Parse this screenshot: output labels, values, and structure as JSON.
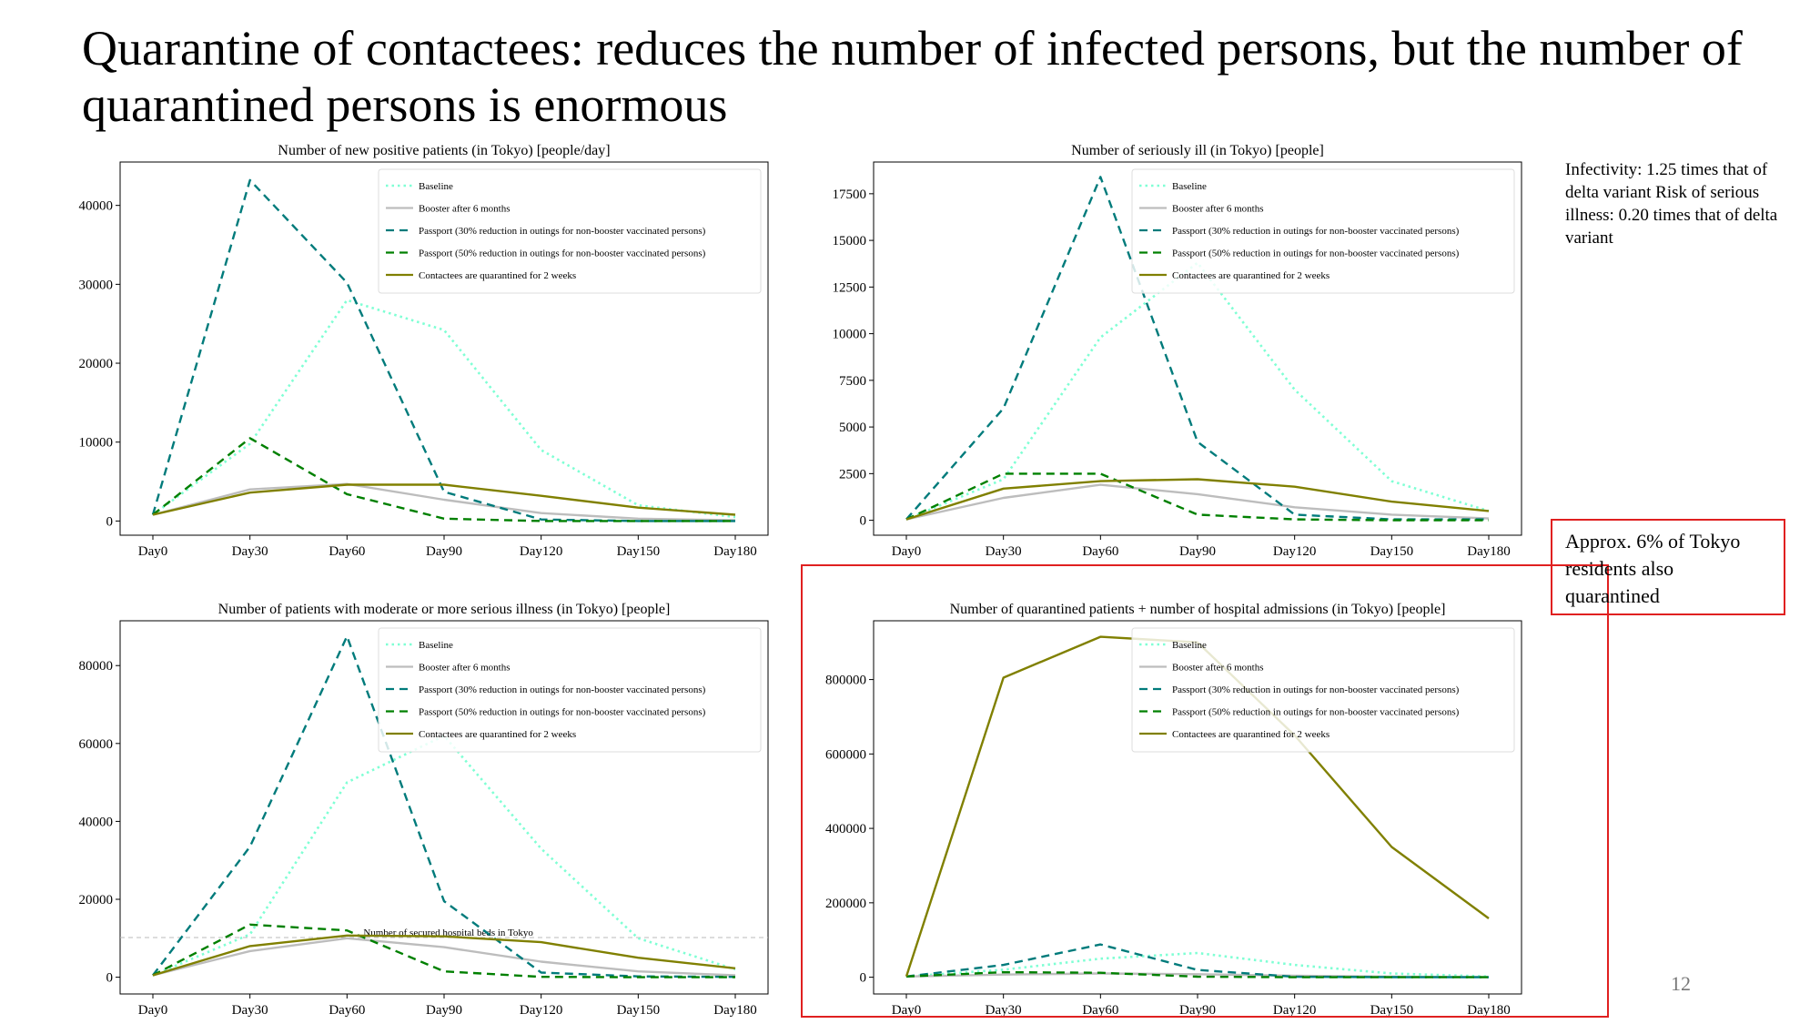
{
  "slide": {
    "title": "Quarantine of contactees: reduces the number of infected persons, but the number of quarantined persons is enormous",
    "side_note": "Infectivity: 1.25 times that of delta variant Risk of serious illness: 0.20 times that of delta variant",
    "callout": "Approx. 6% of Tokyo residents also quarantined",
    "page_number": "12",
    "colors": {
      "frame": "#e02020"
    }
  },
  "legend": [
    {
      "label": "Baseline",
      "color": "#7fffd4",
      "style": "dotted"
    },
    {
      "label": "Booster after 6 months",
      "color": "#bdbdbd",
      "style": "solid"
    },
    {
      "label": "Passport (30% reduction in outings for non-booster vaccinated persons)",
      "color": "#007b7b",
      "style": "dashed"
    },
    {
      "label": "Passport (50% reduction in outings for non-booster vaccinated persons)",
      "color": "#008000",
      "style": "dashed"
    },
    {
      "label": "Contactees are quarantined for 2 weeks",
      "color": "#808000",
      "style": "solid"
    }
  ],
  "chart_data": [
    {
      "type": "line",
      "title": "Number of new positive patients (in Tokyo) [people/day]",
      "categories": [
        "Day0",
        "Day30",
        "Day60",
        "Day90",
        "Day120",
        "Day150",
        "Day180"
      ],
      "ylim": [
        -1800,
        45500
      ],
      "yticks": [
        0,
        10000,
        20000,
        30000,
        40000
      ],
      "ytick_labels": [
        "0",
        "10000",
        "20000",
        "30000",
        "40000"
      ],
      "series": [
        {
          "name": "Baseline",
          "values": [
            800,
            9800,
            28000,
            24200,
            9000,
            2000,
            500
          ]
        },
        {
          "name": "Booster after 6 months",
          "values": [
            800,
            4000,
            4700,
            2700,
            1000,
            300,
            100
          ]
        },
        {
          "name": "Passport (30% reduction in outings for non-booster vaccinated persons)",
          "values": [
            800,
            43200,
            30200,
            3700,
            200,
            0,
            0
          ]
        },
        {
          "name": "Passport (50% reduction in outings for non-booster vaccinated persons)",
          "values": [
            800,
            10500,
            3400,
            300,
            0,
            0,
            0
          ]
        },
        {
          "name": "Contactees are quarantined for 2 weeks",
          "values": [
            800,
            3600,
            4600,
            4600,
            3200,
            1700,
            800
          ]
        }
      ]
    },
    {
      "type": "line",
      "title": "Number of seriously ill (in Tokyo) [people]",
      "categories": [
        "Day0",
        "Day30",
        "Day60",
        "Day90",
        "Day120",
        "Day150",
        "Day180"
      ],
      "ylim": [
        -800,
        19200
      ],
      "yticks": [
        0,
        2500,
        5000,
        7500,
        10000,
        12500,
        15000,
        17500
      ],
      "ytick_labels": [
        "0",
        "2500",
        "5000",
        "7500",
        "10000",
        "12500",
        "15000",
        "17500"
      ],
      "series": [
        {
          "name": "Baseline",
          "values": [
            50,
            2200,
            9800,
            13800,
            7000,
            2100,
            500
          ]
        },
        {
          "name": "Booster after 6 months",
          "values": [
            50,
            1200,
            1900,
            1400,
            700,
            300,
            100
          ]
        },
        {
          "name": "Passport (30% reduction in outings for non-booster vaccinated persons)",
          "values": [
            50,
            6000,
            18400,
            4200,
            300,
            50,
            50
          ]
        },
        {
          "name": "Passport (50% reduction in outings for non-booster vaccinated persons)",
          "values": [
            50,
            2500,
            2500,
            300,
            50,
            0,
            0
          ]
        },
        {
          "name": "Contactees are quarantined for 2 weeks",
          "values": [
            50,
            1700,
            2100,
            2200,
            1800,
            1000,
            500
          ]
        }
      ]
    },
    {
      "type": "line",
      "title": "Number of patients with moderate or more serious illness (in Tokyo) [people]",
      "categories": [
        "Day0",
        "Day30",
        "Day60",
        "Day90",
        "Day120",
        "Day150",
        "Day180"
      ],
      "ylim": [
        -4300,
        91500
      ],
      "yticks": [
        0,
        20000,
        40000,
        60000,
        80000
      ],
      "ytick_labels": [
        "0",
        "20000",
        "40000",
        "60000",
        "80000"
      ],
      "reference_line": {
        "value": 10200,
        "label": "Number of secured hospital beds in Tokyo"
      },
      "series": [
        {
          "name": "Baseline",
          "values": [
            500,
            11000,
            50000,
            62000,
            33000,
            10000,
            2000
          ]
        },
        {
          "name": "Booster after 6 months",
          "values": [
            500,
            6700,
            10000,
            7700,
            4000,
            1500,
            500
          ]
        },
        {
          "name": "Passport (30% reduction in outings for non-booster vaccinated persons)",
          "values": [
            500,
            33500,
            87500,
            19500,
            1200,
            200,
            100
          ]
        },
        {
          "name": "Passport (50% reduction in outings for non-booster vaccinated persons)",
          "values": [
            500,
            13500,
            12000,
            1500,
            100,
            0,
            0
          ]
        },
        {
          "name": "Contactees are quarantined for 2 weeks",
          "values": [
            500,
            8000,
            10700,
            10500,
            9000,
            5000,
            2300
          ]
        }
      ]
    },
    {
      "type": "line",
      "title": "Number of quarantined patients + number of hospital admissions (in Tokyo) [people]",
      "categories": [
        "Day0",
        "Day30",
        "Day60",
        "Day90",
        "Day120",
        "Day150",
        "Day180"
      ],
      "ylim": [
        -45000,
        958000
      ],
      "yticks": [
        0,
        200000,
        400000,
        600000,
        800000
      ],
      "ytick_labels": [
        "0",
        "200000",
        "400000",
        "600000",
        "800000"
      ],
      "series": [
        {
          "name": "Baseline",
          "values": [
            2000,
            20000,
            50000,
            65000,
            33000,
            10000,
            2000
          ]
        },
        {
          "name": "Booster after 6 months",
          "values": [
            2000,
            7000,
            10000,
            8000,
            4000,
            1500,
            500
          ]
        },
        {
          "name": "Passport (30% reduction in outings for non-booster vaccinated persons)",
          "values": [
            2000,
            33000,
            88000,
            19500,
            1200,
            200,
            100
          ]
        },
        {
          "name": "Passport (50% reduction in outings for non-booster vaccinated persons)",
          "values": [
            2000,
            13500,
            12000,
            1500,
            100,
            0,
            0
          ]
        },
        {
          "name": "Contactees are quarantined for 2 weeks",
          "values": [
            2000,
            805000,
            915000,
            900000,
            650000,
            350000,
            158000
          ]
        }
      ]
    }
  ]
}
